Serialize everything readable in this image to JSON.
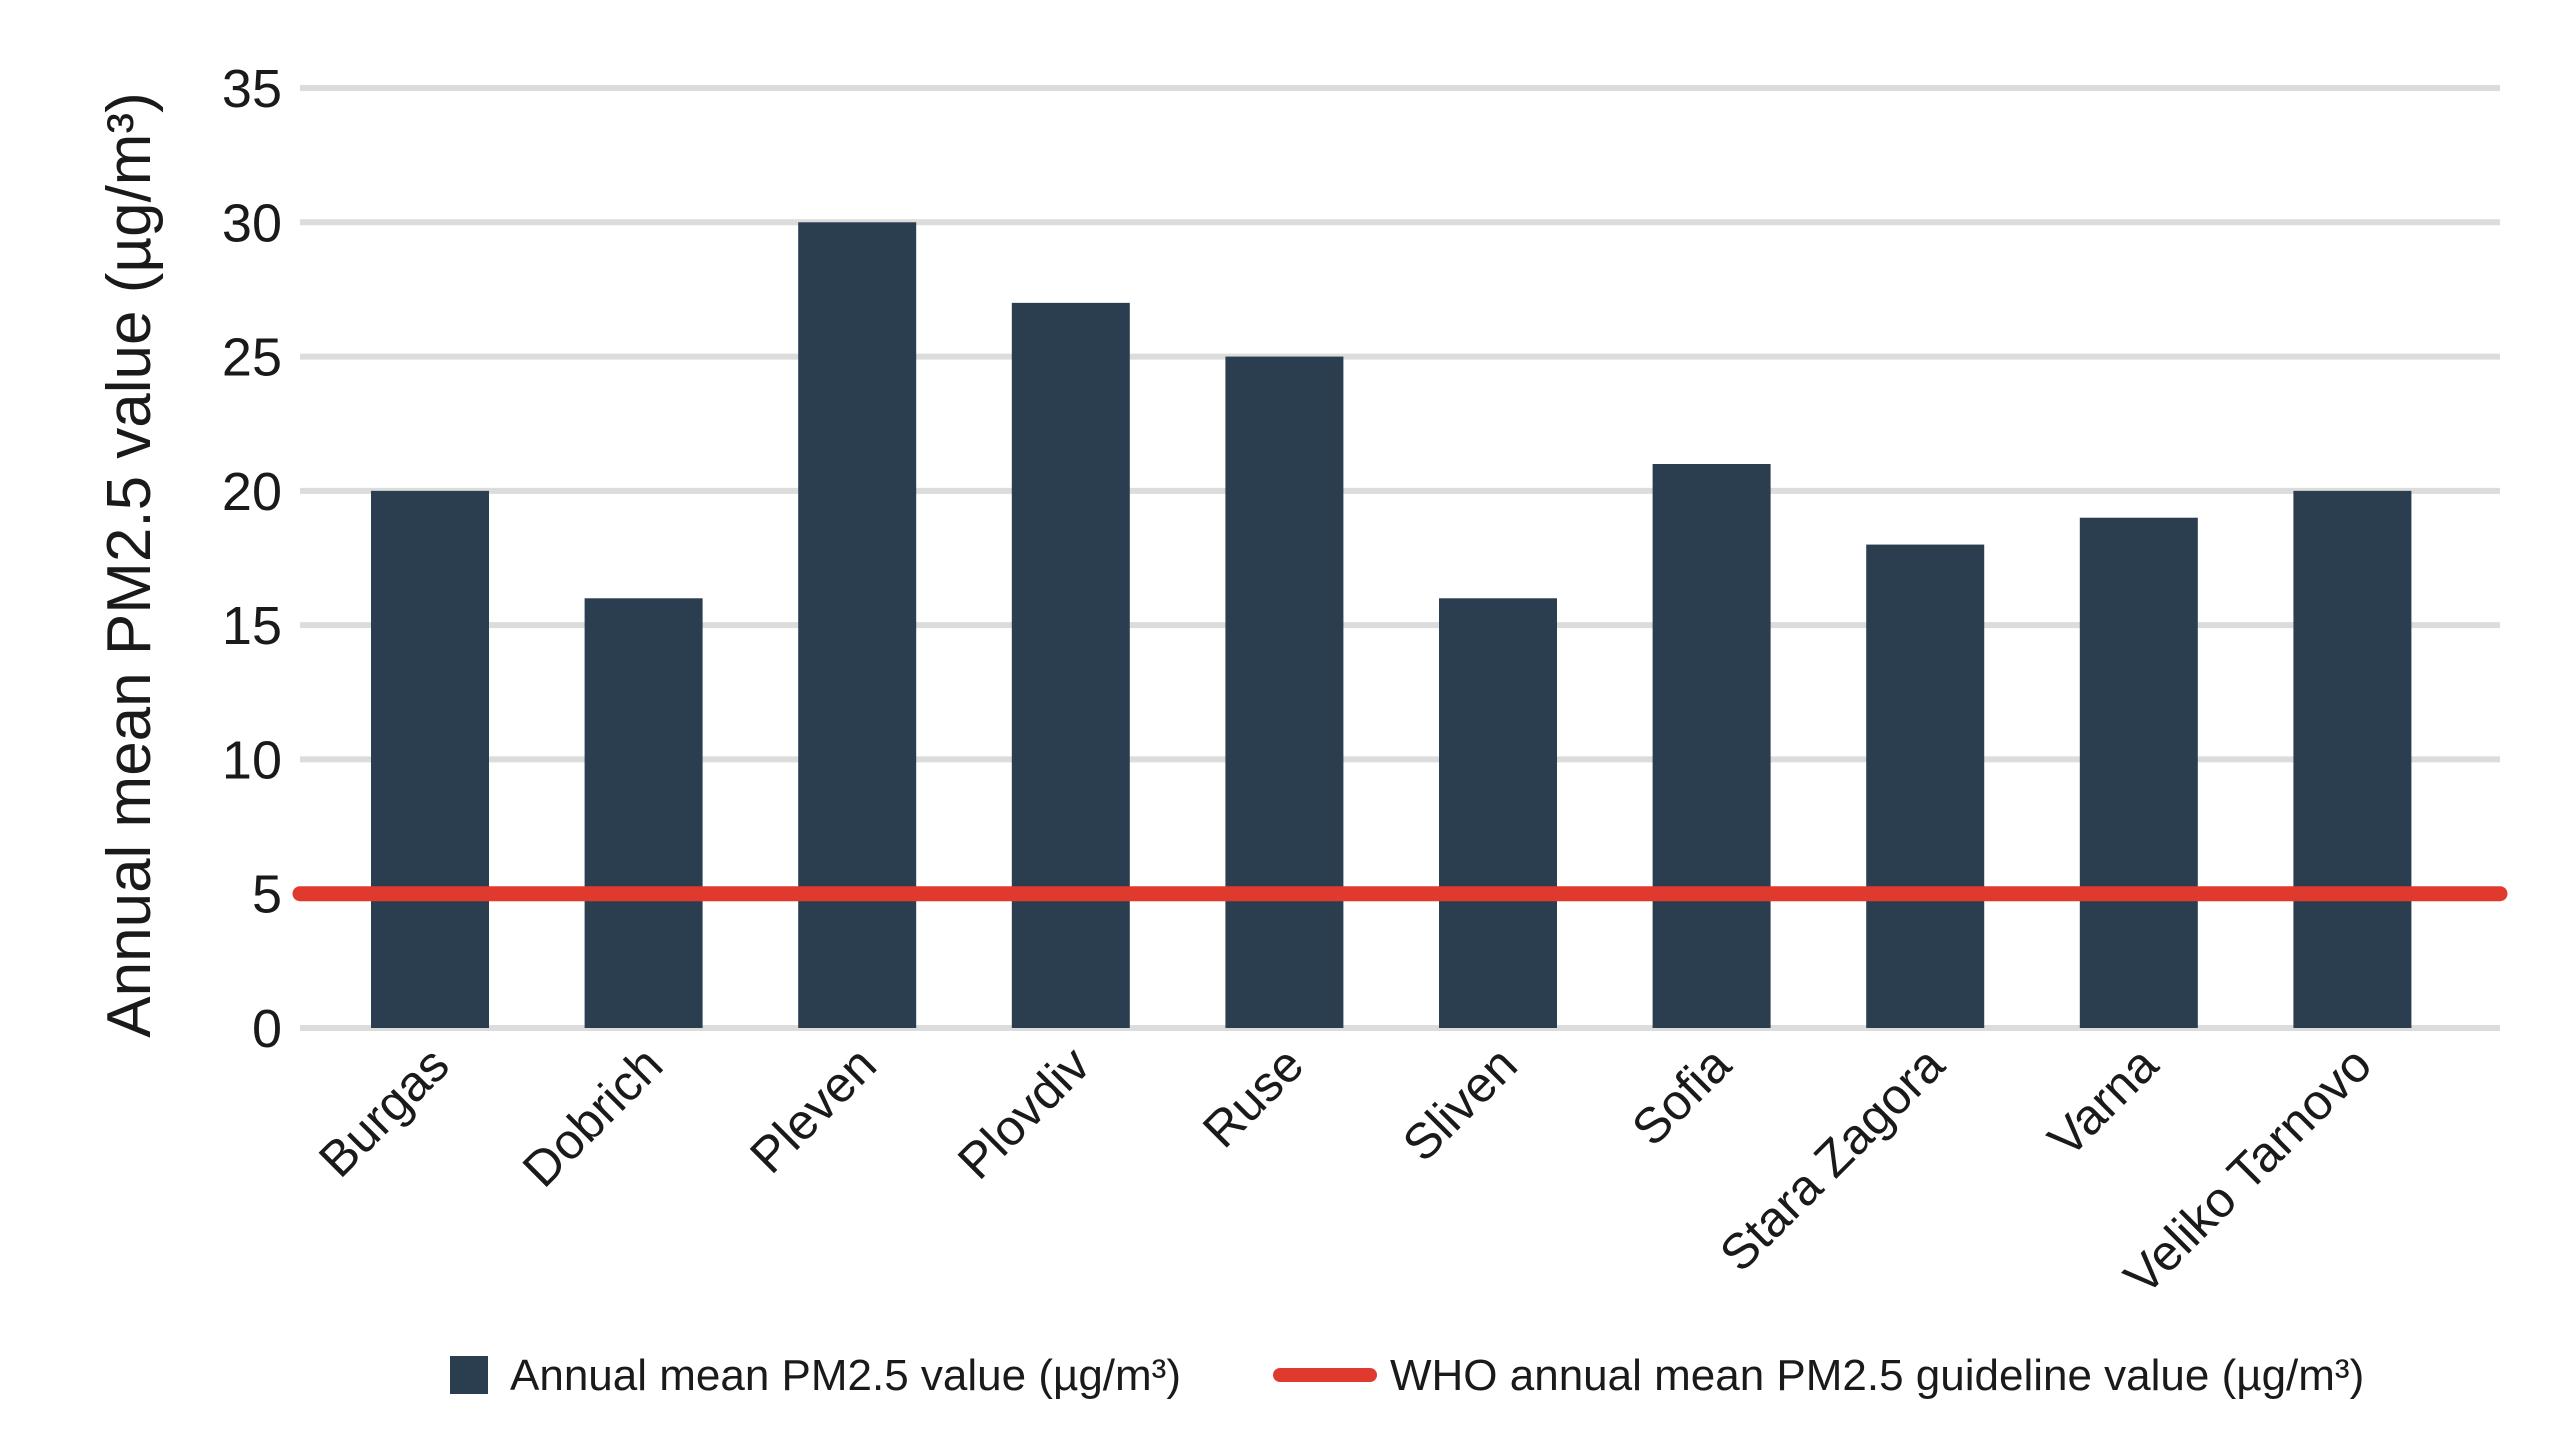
{
  "chart_data": {
    "type": "bar",
    "categories": [
      "Burgas",
      "Dobrich",
      "Pleven",
      "Plovdiv",
      "Ruse",
      "Sliven",
      "Sofia",
      "Stara Zagora",
      "Varna",
      "Veliko Tarnovo"
    ],
    "series": [
      {
        "name": "Annual mean PM2.5 value (µg/m³)",
        "values": [
          20,
          16,
          30,
          27,
          25,
          16,
          21,
          18,
          19,
          20
        ],
        "color": "#2b3e50"
      }
    ],
    "reference_line": {
      "name": "WHO annual mean PM2.5 guideline value (µg/m³)",
      "value": 5,
      "color": "#e03a2f"
    },
    "title": "",
    "xlabel": "",
    "ylabel": "Annual mean PM2.5 value (µg/m³)",
    "ylim": [
      0,
      35
    ],
    "yticks": [
      0,
      5,
      10,
      15,
      20,
      25,
      30,
      35
    ],
    "grid": true,
    "gridColor": "#dcdcdc",
    "legend": "bottom-center"
  }
}
